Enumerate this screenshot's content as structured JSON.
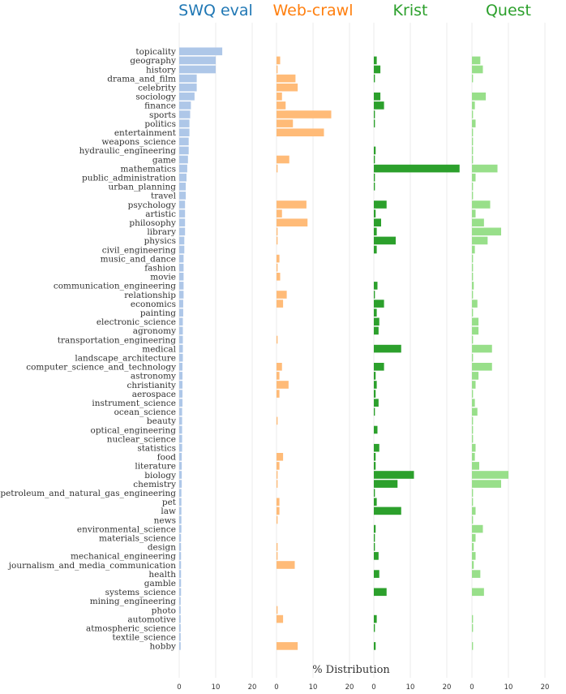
{
  "chart_data": {
    "type": "bar",
    "orientation": "horizontal",
    "xlabel": "% Distribution",
    "xlim": [
      0,
      20
    ],
    "xticks": [
      0,
      10,
      20
    ],
    "grid": true,
    "categories": [
      "topicality",
      "geography",
      "history",
      "drama_and_film",
      "celebrity",
      "sociology",
      "finance",
      "sports",
      "politics",
      "entertainment",
      "weapons_science",
      "hydraulic_engineering",
      "game",
      "mathematics",
      "public_administration",
      "urban_planning",
      "travel",
      "psychology",
      "artistic",
      "philosophy",
      "library",
      "physics",
      "civil_engineering",
      "music_and_dance",
      "fashion",
      "movie",
      "communication_engineering",
      "relationship",
      "economics",
      "painting",
      "electronic_science",
      "agronomy",
      "transportation_engineering",
      "medical",
      "landscape_architecture",
      "computer_science_and_technology",
      "astronomy",
      "christianity",
      "aerospace",
      "instrument_science",
      "ocean_science",
      "beauty",
      "optical_engineering",
      "nuclear_science",
      "statistics",
      "food",
      "literature",
      "biology",
      "chemistry",
      "petroleum_and_natural_gas_engineering",
      "pet",
      "law",
      "news",
      "environmental_science",
      "materials_science",
      "design",
      "mechanical_engineering",
      "journalism_and_media_communication",
      "health",
      "gamble",
      "systems_science",
      "mining_engineering",
      "photo",
      "automotive",
      "atmospheric_science",
      "textile_science",
      "hobby"
    ],
    "series": [
      {
        "name": "SWQ eval",
        "color": "#aec7e8",
        "title_color": "#1f77b4",
        "values": [
          11.8,
          10.0,
          10.0,
          4.8,
          4.8,
          4.2,
          3.2,
          3.0,
          2.8,
          2.8,
          2.6,
          2.6,
          2.4,
          2.2,
          2.0,
          1.8,
          1.8,
          1.6,
          1.6,
          1.6,
          1.6,
          1.4,
          1.4,
          1.2,
          1.2,
          1.2,
          1.2,
          1.2,
          1.1,
          1.1,
          1.0,
          1.0,
          1.0,
          1.0,
          1.0,
          0.9,
          0.9,
          0.9,
          0.9,
          0.9,
          0.8,
          0.8,
          0.8,
          0.8,
          0.8,
          0.7,
          0.7,
          0.7,
          0.7,
          0.6,
          0.6,
          0.6,
          0.6,
          0.6,
          0.5,
          0.5,
          0.5,
          0.5,
          0.5,
          0.5,
          0.5,
          0.4,
          0.4,
          0.4,
          0.4,
          0.4,
          0.4
        ]
      },
      {
        "name": "Web-crawl",
        "color": "#ffbb78",
        "title_color": "#ff7f0e",
        "values": [
          0,
          1.0,
          0.3,
          5.2,
          5.8,
          1.5,
          2.5,
          15.0,
          4.5,
          13.0,
          0,
          0,
          3.5,
          0.3,
          0,
          0,
          0,
          8.2,
          1.5,
          8.5,
          0.3,
          0.3,
          0,
          0.8,
          0.3,
          1.0,
          0,
          2.8,
          1.8,
          0,
          0,
          0,
          0.3,
          0,
          0,
          1.5,
          0.8,
          3.3,
          0.8,
          0,
          0,
          0.3,
          0,
          0,
          0,
          1.8,
          0.8,
          0.3,
          0.3,
          0,
          0.8,
          0.8,
          0.3,
          0,
          0,
          0.3,
          0.3,
          5.0,
          0,
          0,
          0,
          0,
          0.3,
          1.8,
          0,
          0,
          5.8
        ]
      },
      {
        "name": "Krist",
        "color": "#2ca02c",
        "title_color": "#2ca02c",
        "values": [
          0,
          0.8,
          1.8,
          0.3,
          0,
          1.8,
          2.8,
          0.3,
          0.3,
          0,
          0,
          0.5,
          0.3,
          23.5,
          0.3,
          0.3,
          0,
          3.5,
          0.5,
          2.0,
          0.8,
          6.0,
          0.8,
          0,
          0,
          0,
          1.0,
          0.3,
          2.8,
          0.8,
          1.5,
          1.3,
          0,
          7.5,
          0,
          2.8,
          0.5,
          0.8,
          0.5,
          1.3,
          0.3,
          0,
          1.0,
          0,
          1.5,
          0.5,
          0.5,
          11.0,
          6.5,
          0.3,
          0.8,
          7.5,
          0,
          0.5,
          0.3,
          0.3,
          1.3,
          0,
          1.5,
          0,
          3.5,
          0,
          0,
          0.8,
          0.3,
          0,
          0.5
        ]
      },
      {
        "name": "Quest",
        "color": "#98df8a",
        "title_color": "#2ca02c",
        "values": [
          0,
          2.3,
          3.0,
          0.3,
          0,
          3.8,
          0.8,
          0.3,
          1.0,
          0.3,
          0.3,
          0.3,
          0.3,
          7.0,
          1.0,
          0.3,
          0.3,
          5.0,
          1.0,
          3.3,
          8.0,
          4.3,
          0.8,
          0.3,
          0.3,
          0.3,
          0.5,
          0.3,
          1.5,
          0.3,
          1.8,
          1.8,
          0.3,
          5.5,
          0.3,
          5.5,
          1.8,
          1.0,
          0.3,
          0.8,
          1.5,
          0.3,
          0.3,
          0.3,
          1.0,
          0.8,
          2.0,
          10.0,
          8.0,
          0.3,
          0.3,
          1.0,
          0.3,
          3.0,
          1.0,
          0.5,
          1.0,
          0.5,
          2.3,
          0,
          3.3,
          0,
          0,
          0.3,
          0.3,
          0,
          0.3
        ]
      }
    ]
  }
}
